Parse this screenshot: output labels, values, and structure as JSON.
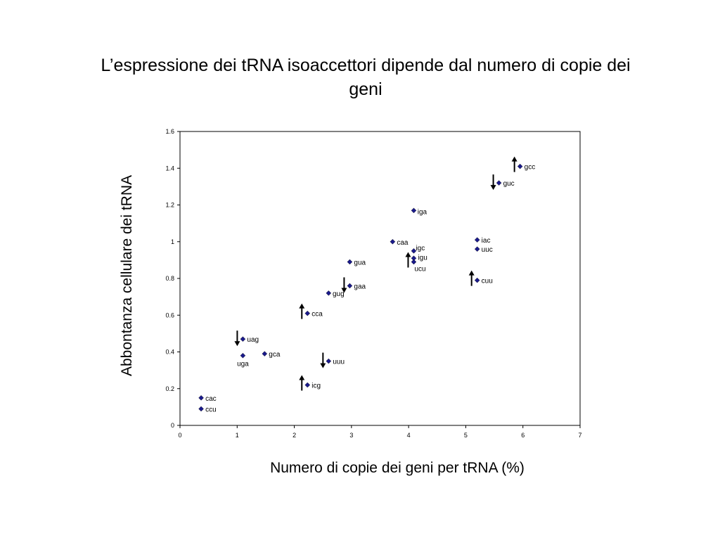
{
  "title": "L’espressione dei tRNA isoaccettori dipende dal numero di copie dei geni",
  "chart_data": {
    "type": "scatter",
    "title": "L’espressione dei tRNA isoaccettori dipende dal numero di copie dei geni",
    "xlabel": "Numero di copie dei geni per tRNA (%)",
    "ylabel": "Abbontanza cellulare dei tRNA",
    "xlim": [
      0,
      7
    ],
    "ylim": [
      0,
      1.6
    ],
    "xticks": [
      "0",
      "1",
      "2",
      "3",
      "4",
      "5",
      "6",
      "7"
    ],
    "yticks": [
      "0",
      "0.2",
      "0.4",
      "0.6",
      "0.8",
      "1",
      "1.2",
      "1.4",
      "1.6"
    ],
    "grid": false,
    "marker_color": "#1a1a8c",
    "points": [
      {
        "label": "cac",
        "x": 0.37,
        "y": 0.15
      },
      {
        "label": "ccu",
        "x": 0.37,
        "y": 0.09
      },
      {
        "label": "uag",
        "x": 1.1,
        "y": 0.47,
        "arrow": "down"
      },
      {
        "label": "uga",
        "x": 1.1,
        "y": 0.38
      },
      {
        "label": "gca",
        "x": 1.48,
        "y": 0.39
      },
      {
        "label": "cca",
        "x": 2.23,
        "y": 0.61,
        "arrow": "up"
      },
      {
        "label": "icg",
        "x": 2.23,
        "y": 0.22,
        "arrow": "up"
      },
      {
        "label": "uuu",
        "x": 2.6,
        "y": 0.35,
        "arrow": "down"
      },
      {
        "label": "gug",
        "x": 2.6,
        "y": 0.72
      },
      {
        "label": "gaa",
        "x": 2.97,
        "y": 0.76,
        "arrow": "down"
      },
      {
        "label": "gua",
        "x": 2.97,
        "y": 0.89
      },
      {
        "label": "caa",
        "x": 3.72,
        "y": 1.0
      },
      {
        "label": "iga",
        "x": 4.09,
        "y": 1.17
      },
      {
        "label": "igc",
        "x": 4.09,
        "y": 0.95
      },
      {
        "label": "igu",
        "x": 4.09,
        "y": 0.91
      },
      {
        "label": "ucu",
        "x": 4.09,
        "y": 0.89,
        "arrow": "up"
      },
      {
        "label": "iac",
        "x": 5.2,
        "y": 1.01
      },
      {
        "label": "uuc",
        "x": 5.2,
        "y": 0.96
      },
      {
        "label": "cuu",
        "x": 5.2,
        "y": 0.79,
        "arrow": "up"
      },
      {
        "label": "guc",
        "x": 5.58,
        "y": 1.32,
        "arrow": "down"
      },
      {
        "label": "gcc",
        "x": 5.95,
        "y": 1.41,
        "arrow": "up"
      }
    ]
  }
}
